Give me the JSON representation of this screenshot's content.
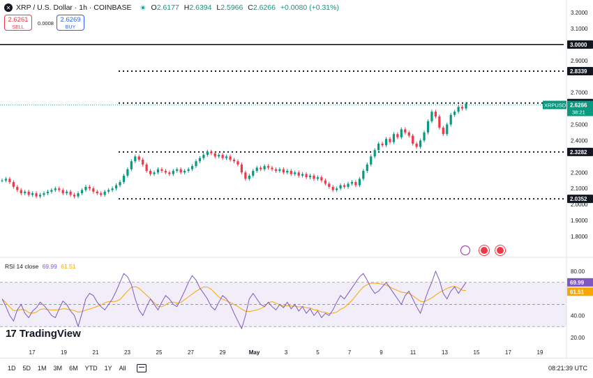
{
  "header": {
    "logo_glyph": "✕",
    "symbol_title": "XRP / U.S. Dollar · 1h · COINBASE",
    "ohlc": {
      "o_label": "O",
      "o": "2.6177",
      "h_label": "H",
      "h": "2.6394",
      "l_label": "L",
      "l": "2.5966",
      "c_label": "C",
      "c": "2.6266",
      "change": "+0.0080 (+0.31%)"
    }
  },
  "trade": {
    "sell_price": "2.6261",
    "sell_label": "SELL",
    "spread": "0.0008",
    "buy_price": "2.6269",
    "buy_label": "BUY"
  },
  "rsi": {
    "label": "RSI 14 close",
    "value": "69.99",
    "ma_value": "61.51",
    "axis_ticks": [
      "80.00",
      "40.00",
      "20.00"
    ]
  },
  "watermark": {
    "mark": "17",
    "text": "TradingView"
  },
  "bottom_bar": {
    "timeframes": [
      "1D",
      "5D",
      "1M",
      "3M",
      "6M",
      "YTD",
      "1Y",
      "All"
    ],
    "clock": "08:21:39 UTC"
  },
  "colors": {
    "up": "#089981",
    "down": "#f23645",
    "rsi": "#7e57c2",
    "rsi_ma": "#f7a600",
    "price_badge": "#089981"
  },
  "chart_data": {
    "type": "candlestick",
    "price_axis": {
      "ticks": [
        "3.2000",
        "3.1000",
        "2.9000",
        "2.7000",
        "2.5000",
        "2.4000",
        "2.2000",
        "2.1000",
        "2.0000",
        "1.9000",
        "1.8000"
      ],
      "ylim": [
        1.78,
        3.22
      ]
    },
    "levels": [
      {
        "value": 3.0,
        "label": "3.0000",
        "style": "solid"
      },
      {
        "value": 2.8339,
        "label": "2.8339",
        "style": "dotted"
      },
      {
        "value": 2.6341,
        "label": "2.6341",
        "style": "dotted"
      },
      {
        "value": 2.3282,
        "label": "2.3282",
        "style": "dotted"
      },
      {
        "value": 2.0352,
        "label": "2.0352",
        "style": "dotted"
      }
    ],
    "last_price": {
      "symbol": "XRPUSD",
      "value": "2.6266",
      "countdown": "38:21"
    },
    "x_ticks": [
      "17",
      "19",
      "21",
      "23",
      "25",
      "27",
      "29",
      "May",
      "3",
      "5",
      "7",
      "9",
      "11",
      "13",
      "15",
      "17",
      "19"
    ],
    "closes": [
      2.15,
      2.16,
      2.14,
      2.11,
      2.09,
      2.07,
      2.08,
      2.06,
      2.07,
      2.05,
      2.06,
      2.07,
      2.08,
      2.09,
      2.1,
      2.09,
      2.07,
      2.08,
      2.06,
      2.05,
      2.07,
      2.09,
      2.11,
      2.1,
      2.08,
      2.07,
      2.06,
      2.08,
      2.09,
      2.1,
      2.12,
      2.14,
      2.18,
      2.22,
      2.27,
      2.3,
      2.28,
      2.25,
      2.21,
      2.19,
      2.2,
      2.22,
      2.21,
      2.2,
      2.19,
      2.21,
      2.22,
      2.2,
      2.21,
      2.22,
      2.24,
      2.27,
      2.29,
      2.31,
      2.33,
      2.32,
      2.3,
      2.31,
      2.29,
      2.3,
      2.28,
      2.27,
      2.25,
      2.2,
      2.16,
      2.18,
      2.21,
      2.23,
      2.22,
      2.24,
      2.23,
      2.22,
      2.21,
      2.22,
      2.2,
      2.21,
      2.19,
      2.2,
      2.18,
      2.19,
      2.17,
      2.18,
      2.16,
      2.17,
      2.15,
      2.13,
      2.11,
      2.09,
      2.1,
      2.12,
      2.11,
      2.13,
      2.14,
      2.12,
      2.16,
      2.21,
      2.25,
      2.3,
      2.34,
      2.38,
      2.37,
      2.41,
      2.39,
      2.44,
      2.42,
      2.47,
      2.45,
      2.43,
      2.38,
      2.36,
      2.4,
      2.45,
      2.52,
      2.58,
      2.55,
      2.48,
      2.44,
      2.5,
      2.56,
      2.58,
      2.61,
      2.6,
      2.63
    ],
    "rsi": [
      55,
      48,
      40,
      35,
      45,
      50,
      42,
      38,
      44,
      47,
      52,
      49,
      45,
      40,
      38,
      46,
      53,
      50,
      44,
      40,
      30,
      42,
      55,
      60,
      58,
      52,
      48,
      45,
      50,
      55,
      62,
      70,
      78,
      75,
      68,
      55,
      45,
      40,
      48,
      55,
      50,
      45,
      52,
      58,
      55,
      50,
      48,
      55,
      62,
      70,
      76,
      72,
      65,
      60,
      55,
      48,
      45,
      52,
      58,
      55,
      50,
      42,
      35,
      28,
      40,
      55,
      60,
      55,
      50,
      48,
      52,
      48,
      45,
      50,
      47,
      52,
      46,
      50,
      44,
      48,
      42,
      46,
      40,
      44,
      38,
      42,
      40,
      45,
      52,
      58,
      55,
      60,
      65,
      70,
      75,
      78,
      72,
      65,
      60,
      62,
      66,
      70,
      65,
      60,
      55,
      50,
      58,
      62,
      55,
      48,
      42,
      52,
      62,
      70,
      80,
      72,
      60,
      55,
      62,
      66,
      60,
      65,
      70
    ]
  }
}
